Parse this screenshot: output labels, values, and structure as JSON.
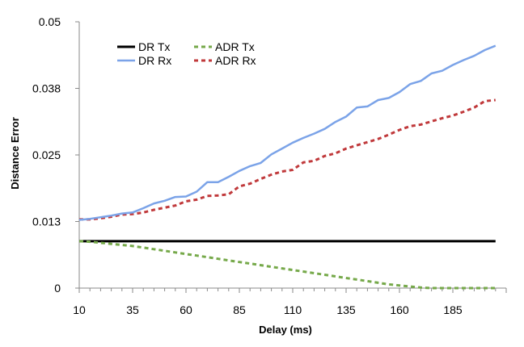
{
  "chart_data": {
    "type": "line",
    "title": "",
    "xlabel": "Delay (ms)",
    "ylabel": "Distance Error",
    "xlim": [
      10,
      210
    ],
    "ylim": [
      0,
      0.05
    ],
    "x_tick_labels": [
      "10",
      "35",
      "60",
      "85",
      "110",
      "135",
      "160",
      "185"
    ],
    "y_tick_labels": [
      "0",
      "0.013",
      "0.025",
      "0.038",
      "0.05"
    ],
    "y_tick_values": [
      0,
      0.0125,
      0.025,
      0.0375,
      0.05
    ],
    "grid": false,
    "legend": "top-left",
    "x": [
      10,
      15,
      20,
      25,
      30,
      35,
      40,
      45,
      50,
      55,
      60,
      65,
      70,
      75,
      80,
      85,
      90,
      95,
      100,
      105,
      110,
      115,
      120,
      125,
      130,
      135,
      140,
      145,
      150,
      155,
      160,
      165,
      170,
      175,
      180,
      185,
      190,
      195,
      200,
      205
    ],
    "series": [
      {
        "name": "DR Tx",
        "color": "#000000",
        "style": "solid",
        "values": [
          0.0088,
          0.0088,
          0.0088,
          0.0088,
          0.0088,
          0.0088,
          0.0088,
          0.0088,
          0.0088,
          0.0088,
          0.0088,
          0.0088,
          0.0088,
          0.0088,
          0.0088,
          0.0088,
          0.0088,
          0.0088,
          0.0088,
          0.0088,
          0.0088,
          0.0088,
          0.0088,
          0.0088,
          0.0088,
          0.0088,
          0.0088,
          0.0088,
          0.0088,
          0.0088,
          0.0088,
          0.0088,
          0.0088,
          0.0088,
          0.0088,
          0.0088,
          0.0088,
          0.0088,
          0.0088,
          0.0088
        ]
      },
      {
        "name": "DR Rx",
        "color": "#7ba3e8",
        "style": "solid",
        "values": [
          0.0128,
          0.013,
          0.0133,
          0.0136,
          0.014,
          0.0142,
          0.015,
          0.0159,
          0.0164,
          0.0171,
          0.0172,
          0.0181,
          0.0199,
          0.0199,
          0.0209,
          0.022,
          0.0229,
          0.0235,
          0.0251,
          0.0262,
          0.0273,
          0.0282,
          0.029,
          0.0299,
          0.0312,
          0.0322,
          0.0339,
          0.0341,
          0.0353,
          0.0357,
          0.0368,
          0.0383,
          0.0389,
          0.0403,
          0.0408,
          0.0419,
          0.0428,
          0.0436,
          0.0447,
          0.0455
        ]
      },
      {
        "name": "ADR Tx",
        "color": "#76a94a",
        "style": "dashed",
        "values": [
          0.0088,
          0.0087,
          0.0085,
          0.0083,
          0.0081,
          0.0079,
          0.0076,
          0.0073,
          0.007,
          0.0067,
          0.0064,
          0.0061,
          0.0058,
          0.0055,
          0.0052,
          0.0049,
          0.0046,
          0.0043,
          0.004,
          0.0037,
          0.0034,
          0.0031,
          0.0028,
          0.0025,
          0.0022,
          0.0019,
          0.0016,
          0.0013,
          0.001,
          0.0007,
          0.0005,
          0.0003,
          0.0001,
          0.0,
          0.0,
          0.0,
          0.0,
          0.0,
          0.0,
          0.0
        ]
      },
      {
        "name": "ADR Rx",
        "color": "#c0393b",
        "style": "dashed",
        "values": [
          0.0129,
          0.0129,
          0.0131,
          0.0134,
          0.0138,
          0.0139,
          0.0142,
          0.0147,
          0.0151,
          0.0155,
          0.0163,
          0.0166,
          0.0173,
          0.0174,
          0.0176,
          0.0191,
          0.0196,
          0.0205,
          0.0213,
          0.0219,
          0.0222,
          0.0236,
          0.0239,
          0.0248,
          0.0253,
          0.0262,
          0.0268,
          0.0274,
          0.028,
          0.0288,
          0.0297,
          0.0304,
          0.0307,
          0.0313,
          0.0319,
          0.0324,
          0.0331,
          0.0339,
          0.0351,
          0.0353
        ]
      }
    ]
  }
}
